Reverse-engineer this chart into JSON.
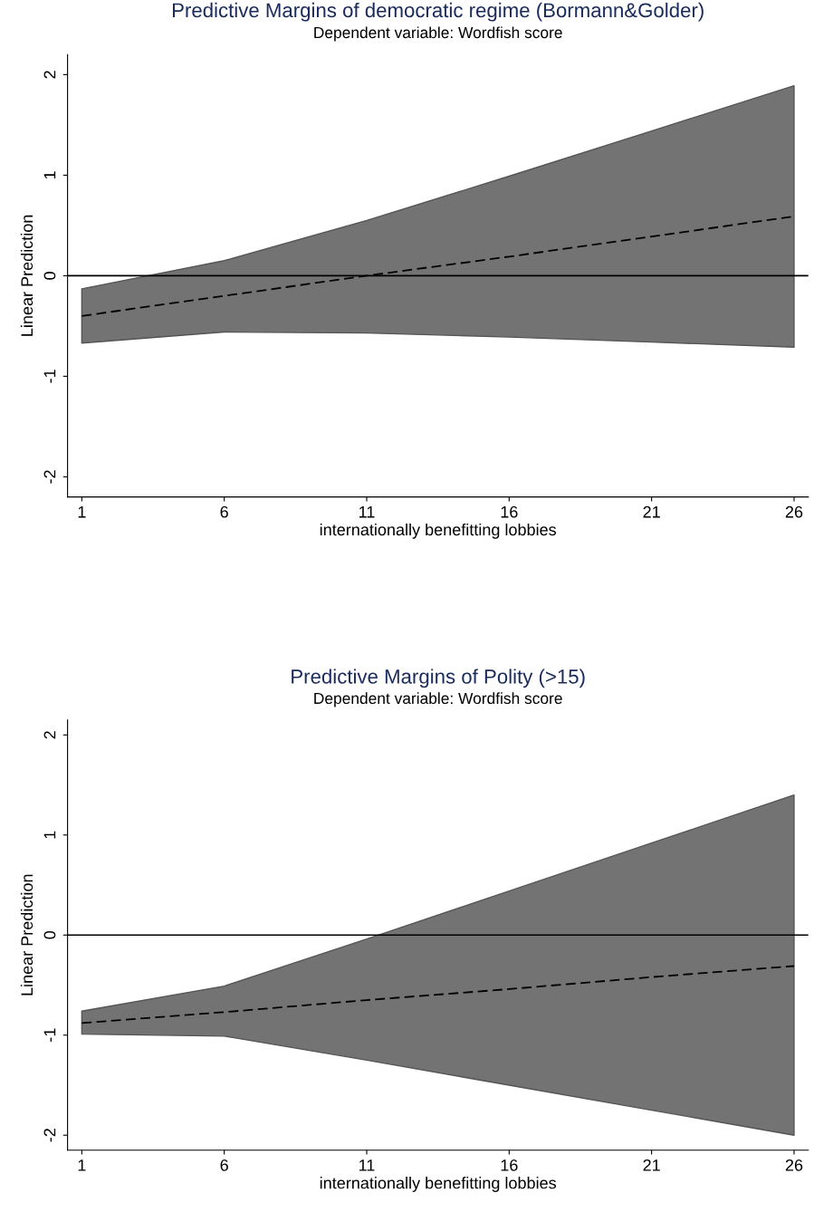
{
  "chart_data": [
    {
      "type": "line",
      "title": "Predictive Margins of democratic regime (Bormann&Golder)",
      "subtitle": "Dependent variable: Wordfish score",
      "xlabel": "internationally benefitting lobbies",
      "ylabel": "Linear Prediction",
      "x": [
        1,
        6,
        11,
        16,
        21,
        26
      ],
      "series": [
        {
          "color": "#000000",
          "values": [
            -0.4,
            -0.2,
            0.0,
            0.19,
            0.39,
            0.59
          ],
          "lower": [
            -0.67,
            -0.56,
            -0.57,
            -0.61,
            -0.66,
            -0.71
          ],
          "upper": [
            -0.13,
            0.15,
            0.55,
            0.99,
            1.44,
            1.89
          ]
        }
      ],
      "xlim": [
        0.5,
        26.5
      ],
      "ylim": [
        -2.2,
        2.2
      ],
      "xticks": [
        1,
        6,
        11,
        16,
        21,
        26
      ],
      "yticks": [
        -2,
        -1,
        0,
        1,
        2
      ],
      "ref_lines": [
        {
          "axis": "y",
          "value": 0,
          "color": "#000000"
        }
      ],
      "grid": false,
      "legend": false,
      "line_style": "dashed",
      "marker": "none"
    },
    {
      "type": "line",
      "title": "Predictive Margins of Polity (>15)",
      "subtitle": "Dependent variable: Wordfish score",
      "xlabel": "internationally benefitting lobbies",
      "ylabel": "Linear Prediction",
      "x": [
        1,
        6,
        11,
        16,
        21,
        26
      ],
      "series": [
        {
          "color": "#000000",
          "values": [
            -0.88,
            -0.77,
            -0.65,
            -0.54,
            -0.42,
            -0.31
          ],
          "lower": [
            -0.99,
            -1.01,
            -1.25,
            -1.5,
            -1.75,
            -2.0
          ],
          "upper": [
            -0.76,
            -0.51,
            -0.04,
            0.44,
            0.92,
            1.4
          ]
        }
      ],
      "xlim": [
        0.5,
        26.5
      ],
      "ylim": [
        -2.15,
        2.15
      ],
      "xticks": [
        1,
        6,
        11,
        16,
        21,
        26
      ],
      "yticks": [
        -2,
        -1,
        0,
        1,
        2
      ],
      "ref_lines": [
        {
          "axis": "y",
          "value": 0,
          "color": "#000000"
        }
      ],
      "grid": false,
      "legend": false,
      "line_style": "dashed",
      "marker": "none"
    }
  ]
}
